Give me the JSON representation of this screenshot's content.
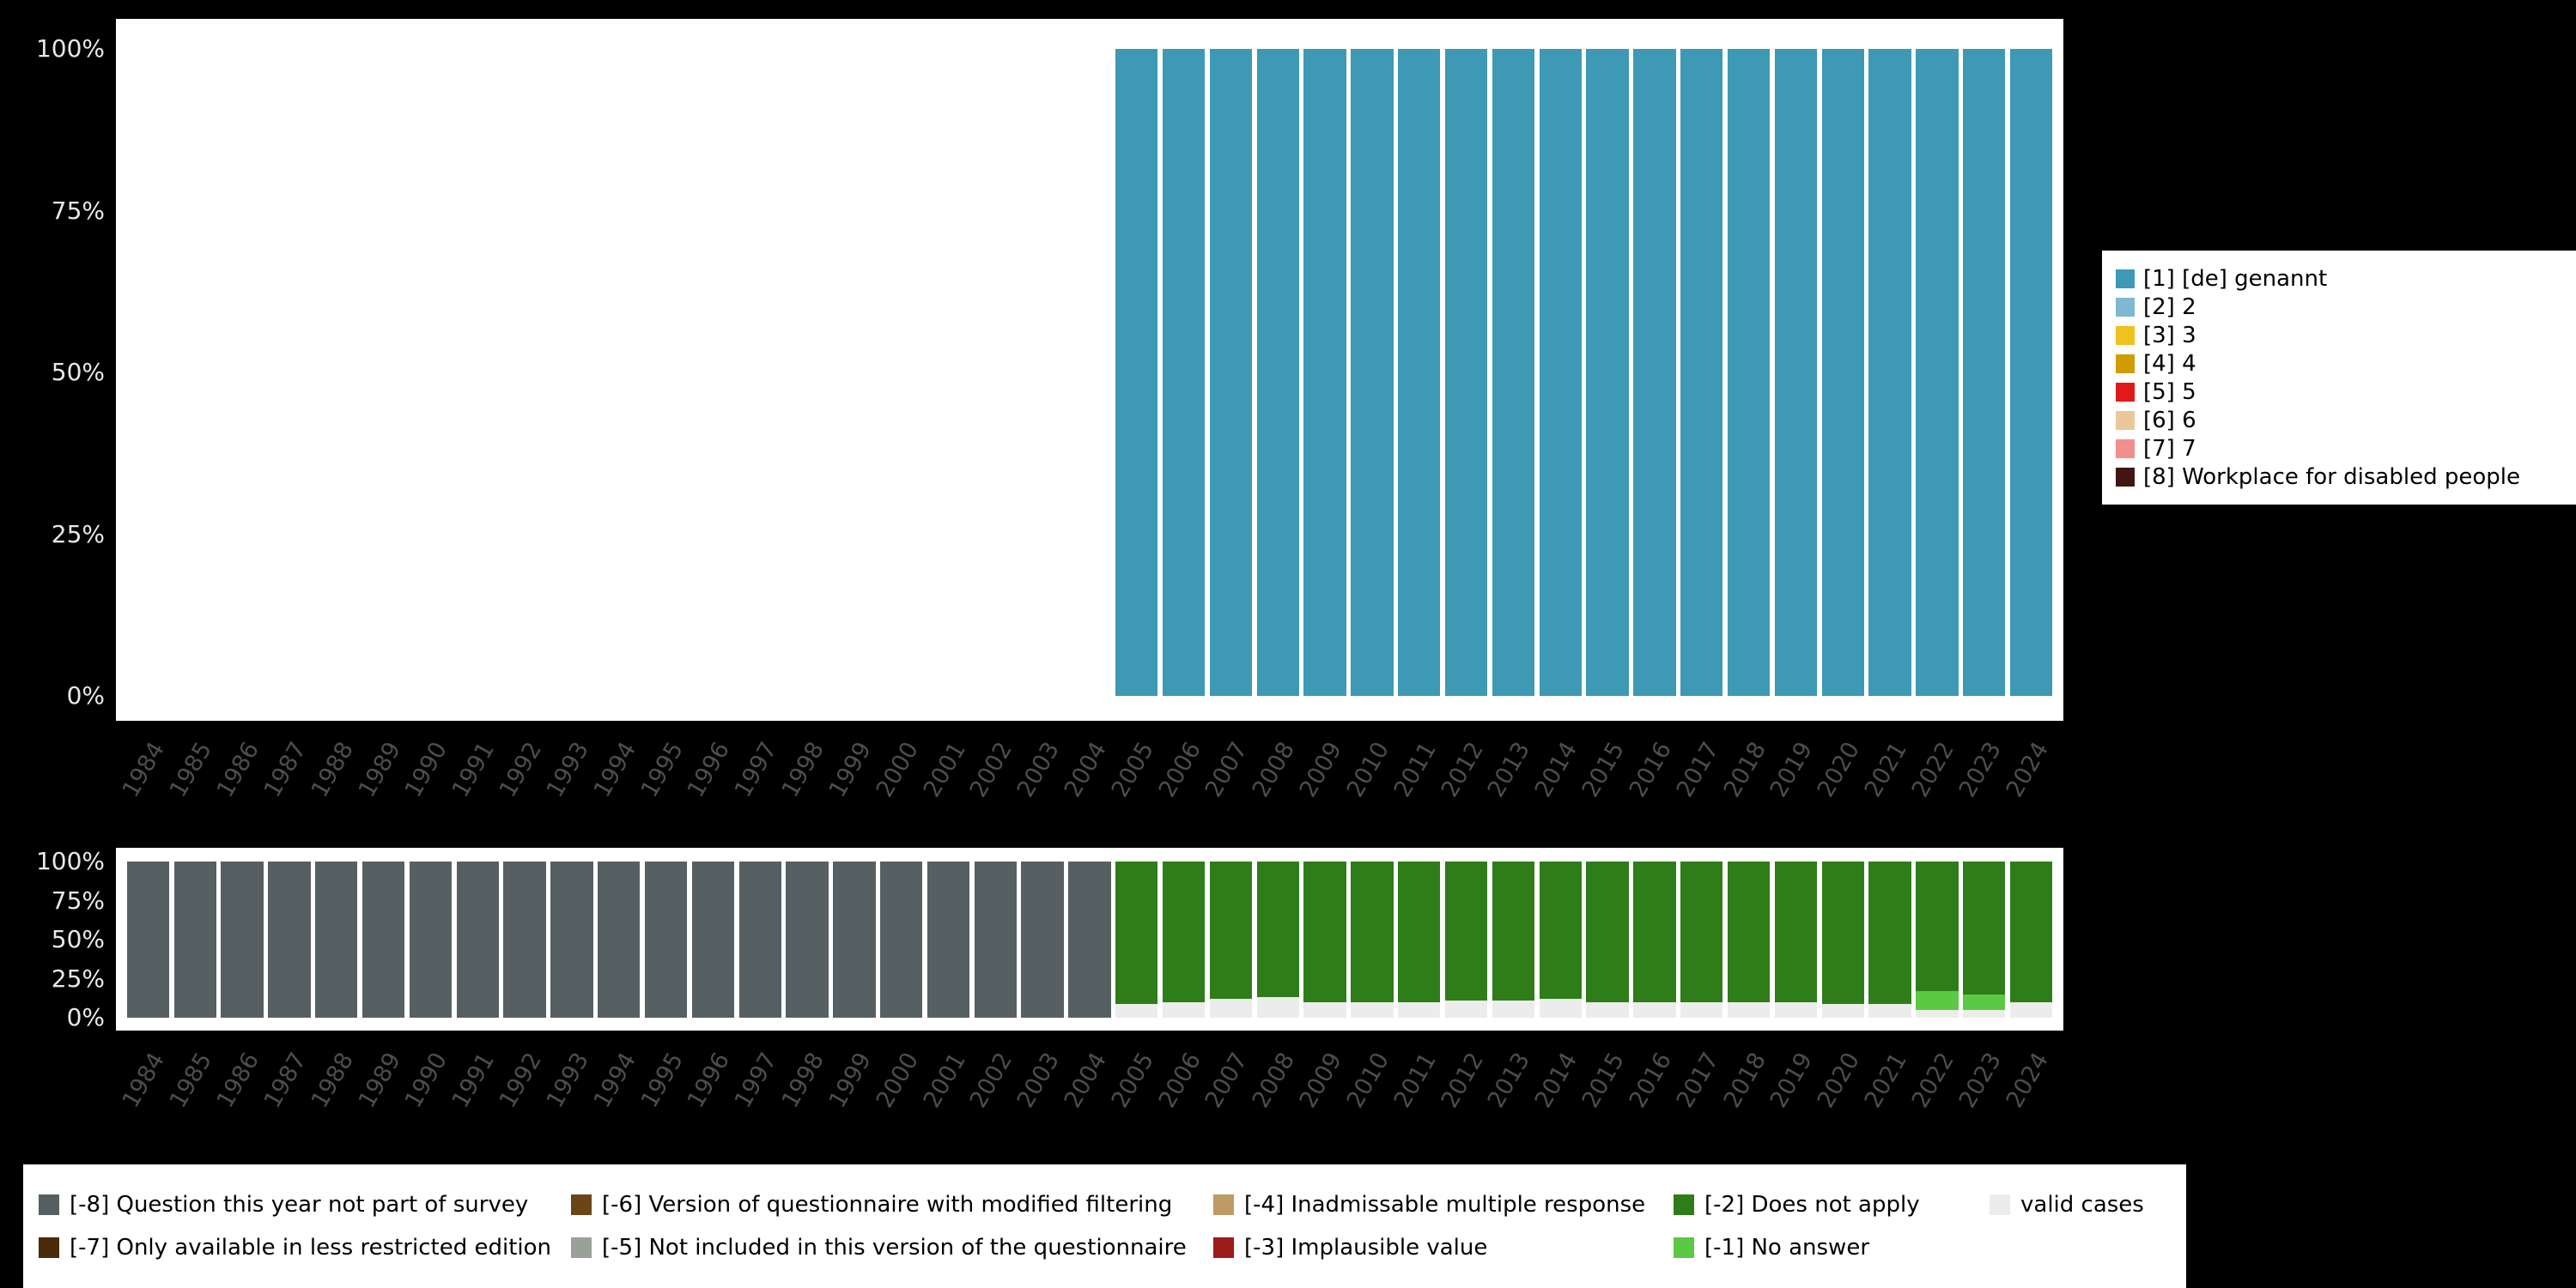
{
  "page": {
    "background": "#000000"
  },
  "colors": {
    "plot_background": "#ffffff",
    "y_axis_label": "#e8e8e8",
    "x_axis_label": "#4d4d4d",
    "legend_background": "#ffffff",
    "legend_text": "#000000"
  },
  "y_axis": {
    "ticks": [
      {
        "label": "100%",
        "pct": 100
      },
      {
        "label": "75%",
        "pct": 75
      },
      {
        "label": "50%",
        "pct": 50
      },
      {
        "label": "25%",
        "pct": 25
      },
      {
        "label": "0%",
        "pct": 0
      }
    ]
  },
  "chart_data": [
    {
      "id": "values",
      "type": "bar",
      "stacked": true,
      "title": "",
      "xlabel": "",
      "ylabel": "",
      "ylim": [
        0,
        100
      ],
      "y_tick_labels": [
        "0%",
        "25%",
        "50%",
        "75%",
        "100%"
      ],
      "grid": false,
      "categories": [
        "1984",
        "1985",
        "1986",
        "1987",
        "1988",
        "1989",
        "1990",
        "1991",
        "1992",
        "1993",
        "1994",
        "1995",
        "1996",
        "1997",
        "1998",
        "1999",
        "2000",
        "2001",
        "2002",
        "2003",
        "2004",
        "2005",
        "2006",
        "2007",
        "2008",
        "2009",
        "2010",
        "2011",
        "2012",
        "2013",
        "2014",
        "2015",
        "2016",
        "2017",
        "2018",
        "2019",
        "2020",
        "2021",
        "2022",
        "2023",
        "2024"
      ],
      "series": [
        {
          "name": "[1] [de] genannt",
          "color": "#3D99B4",
          "values": [
            0,
            0,
            0,
            0,
            0,
            0,
            0,
            0,
            0,
            0,
            0,
            0,
            0,
            0,
            0,
            0,
            0,
            0,
            0,
            0,
            0,
            100,
            100,
            100,
            100,
            100,
            100,
            100,
            100,
            100,
            100,
            100,
            100,
            100,
            100,
            100,
            100,
            100,
            100,
            100,
            100
          ]
        }
      ],
      "legend": {
        "position": "right",
        "entries": [
          {
            "label": "[1] [de] genannt",
            "color": "#3D99B4"
          },
          {
            "label": "[2] 2",
            "color": "#7FB8D2"
          },
          {
            "label": "[3] 3",
            "color": "#EFC21D"
          },
          {
            "label": "[4] 4",
            "color": "#D09C00"
          },
          {
            "label": "[5] 5",
            "color": "#E01A1A"
          },
          {
            "label": "[6] 6",
            "color": "#EAC897"
          },
          {
            "label": "[7] 7",
            "color": "#F28E8E"
          },
          {
            "label": "[8] Workplace for disabled people",
            "color": "#421414"
          }
        ]
      }
    },
    {
      "id": "missing",
      "type": "bar",
      "stacked": true,
      "title": "",
      "xlabel": "",
      "ylabel": "",
      "ylim": [
        0,
        100
      ],
      "y_tick_labels": [
        "0%",
        "25%",
        "50%",
        "75%",
        "100%"
      ],
      "grid": false,
      "categories": [
        "1984",
        "1985",
        "1986",
        "1987",
        "1988",
        "1989",
        "1990",
        "1991",
        "1992",
        "1993",
        "1994",
        "1995",
        "1996",
        "1997",
        "1998",
        "1999",
        "2000",
        "2001",
        "2002",
        "2003",
        "2004",
        "2005",
        "2006",
        "2007",
        "2008",
        "2009",
        "2010",
        "2011",
        "2012",
        "2013",
        "2014",
        "2015",
        "2016",
        "2017",
        "2018",
        "2019",
        "2020",
        "2021",
        "2022",
        "2023",
        "2024"
      ],
      "series": [
        {
          "name": "valid cases",
          "color": "#ECECEC",
          "values": [
            0,
            0,
            0,
            0,
            0,
            0,
            0,
            0,
            0,
            0,
            0,
            0,
            0,
            0,
            0,
            0,
            0,
            0,
            0,
            0,
            0,
            9,
            10,
            12,
            13,
            10,
            10,
            10,
            11,
            11,
            12,
            10,
            10,
            10,
            10,
            10,
            9,
            9,
            5,
            5,
            10
          ]
        },
        {
          "name": "[-1] No answer",
          "color": "#5BC943",
          "values": [
            0,
            0,
            0,
            0,
            0,
            0,
            0,
            0,
            0,
            0,
            0,
            0,
            0,
            0,
            0,
            0,
            0,
            0,
            0,
            0,
            0,
            0,
            0,
            0,
            0,
            0,
            0,
            0,
            0,
            0,
            0,
            0,
            0,
            0,
            0,
            0,
            0,
            0,
            12,
            10,
            0
          ]
        },
        {
          "name": "[-2] Does not apply",
          "color": "#2E7D19",
          "values": [
            0,
            0,
            0,
            0,
            0,
            0,
            0,
            0,
            0,
            0,
            0,
            0,
            0,
            0,
            0,
            0,
            0,
            0,
            0,
            0,
            0,
            91,
            90,
            88,
            87,
            90,
            90,
            90,
            89,
            89,
            88,
            90,
            90,
            90,
            90,
            90,
            91,
            91,
            83,
            85,
            90
          ]
        },
        {
          "name": "[-8] Question this year not part of survey",
          "color": "#566062",
          "values": [
            100,
            100,
            100,
            100,
            100,
            100,
            100,
            100,
            100,
            100,
            100,
            100,
            100,
            100,
            100,
            100,
            100,
            100,
            100,
            100,
            100,
            0,
            0,
            0,
            0,
            0,
            0,
            0,
            0,
            0,
            0,
            0,
            0,
            0,
            0,
            0,
            0,
            0,
            0,
            0,
            0
          ]
        }
      ],
      "legend": {
        "position": "bottom",
        "columns": 5,
        "entries": [
          {
            "label": "[-8] Question this year not part of survey",
            "color": "#566062"
          },
          {
            "label": "[-6] Version of questionnaire with modified filtering",
            "color": "#6B4418"
          },
          {
            "label": "[-4] Inadmissable multiple response",
            "color": "#BE9B64"
          },
          {
            "label": "[-2] Does not apply",
            "color": "#2E7D19"
          },
          {
            "label": "valid cases",
            "color": "#ECECEC"
          },
          {
            "label": "[-7] Only available in less restricted edition",
            "color": "#4A2B0A"
          },
          {
            "label": "[-5] Not included in this version of the questionnaire",
            "color": "#99A199"
          },
          {
            "label": "[-3] Implausible value",
            "color": "#9B1C1C"
          },
          {
            "label": "[-1] No answer",
            "color": "#5BC943"
          }
        ]
      }
    }
  ]
}
